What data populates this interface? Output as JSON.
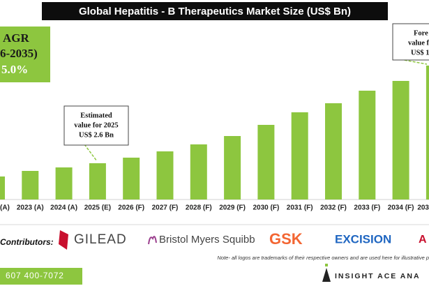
{
  "chart_data": {
    "type": "bar",
    "title": "Global Hepatitis - B Therapeutics Market Size (US$ Bn)",
    "categories": [
      "(A)",
      "2023 (A)",
      "2024 (A)",
      "2025 (E)",
      "2026 (F)",
      "2027 (F)",
      "2028 (F)",
      "2029 (F)",
      "2030 (F)",
      "2031 (F)",
      "2032 (F)",
      "2033 (F)",
      "2034 (F)",
      "203"
    ],
    "values": [
      1.65,
      2.05,
      2.3,
      2.6,
      3.0,
      3.45,
      3.95,
      4.55,
      5.35,
      6.25,
      6.9,
      7.8,
      8.5,
      9.6
    ],
    "color": "#8dc63f",
    "annotations": [
      {
        "lines": [
          "Estimated",
          "value for 2025",
          "US$ 2.6 Bn"
        ]
      },
      {
        "lines": [
          "Fore",
          "value f",
          "US$ 1"
        ]
      }
    ]
  },
  "cagr_box": {
    "lines": [
      "AGR",
      "6-2035)",
      "5.0%"
    ]
  },
  "contributors": {
    "label": "Contributors:",
    "logos": [
      "GILEAD",
      "Bristol Myers Squibb",
      "GSK",
      "EXCISION",
      "A"
    ]
  },
  "note": "Note- all logos are trademarks of their respective owners and are used here for illustrative p",
  "footer": {
    "phone": "607 400-7072",
    "brand": "INSIGHT ACE ANA"
  }
}
